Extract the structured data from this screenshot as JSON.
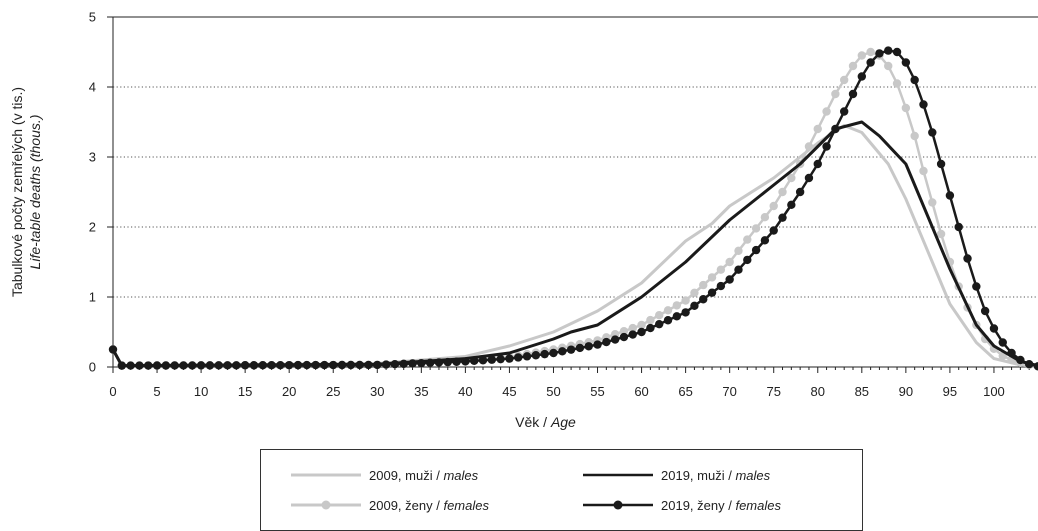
{
  "chart_data": {
    "type": "line",
    "ylabel": "Tabulkové počty zemřelých (v tis.)",
    "ylabel_en": "Life-table deaths (thous.)",
    "xlabel": "Věk",
    "xlabel_en": "Age",
    "xlim": [
      0,
      105
    ],
    "ylim": [
      0,
      5
    ],
    "x_ticks": [
      0,
      5,
      10,
      15,
      20,
      25,
      30,
      35,
      40,
      45,
      50,
      55,
      60,
      65,
      70,
      75,
      80,
      85,
      90,
      95,
      100
    ],
    "y_ticks": [
      0,
      1,
      2,
      3,
      4,
      5
    ],
    "grid": "horizontal dotted",
    "legend_position": "bottom",
    "series": [
      {
        "name": "2009, muži",
        "name_en": "males",
        "color": "#c8c8c8",
        "marker": false,
        "x": [
          0,
          1,
          30,
          40,
          45,
          50,
          55,
          60,
          65,
          68,
          70,
          75,
          80,
          83,
          85,
          88,
          90,
          93,
          95,
          98,
          100,
          103,
          105
        ],
        "y": [
          0.25,
          0.02,
          0.05,
          0.15,
          0.3,
          0.5,
          0.8,
          1.2,
          1.8,
          2.05,
          2.3,
          2.7,
          3.2,
          3.45,
          3.35,
          2.9,
          2.4,
          1.5,
          0.9,
          0.35,
          0.12,
          0.03,
          0.0
        ]
      },
      {
        "name": "2019, muži",
        "name_en": "males",
        "color": "#1a1a1a",
        "marker": false,
        "x": [
          0,
          1,
          30,
          40,
          45,
          50,
          52,
          55,
          60,
          65,
          70,
          75,
          78,
          80,
          82,
          85,
          87,
          90,
          93,
          95,
          98,
          100,
          103,
          105
        ],
        "y": [
          0.25,
          0.02,
          0.04,
          0.12,
          0.2,
          0.4,
          0.5,
          0.6,
          1.0,
          1.5,
          2.1,
          2.6,
          2.9,
          3.15,
          3.4,
          3.5,
          3.3,
          2.9,
          2.0,
          1.4,
          0.6,
          0.3,
          0.08,
          0.02
        ]
      },
      {
        "name": "2009, ženy",
        "name_en": "females",
        "color": "#c8c8c8",
        "marker": true,
        "x": [
          0,
          1,
          30,
          40,
          45,
          50,
          55,
          60,
          65,
          70,
          75,
          78,
          80,
          82,
          84,
          85,
          86,
          87,
          88,
          89,
          90,
          91,
          92,
          93,
          94,
          95,
          96,
          97,
          98,
          99,
          100,
          101,
          102,
          103,
          104,
          105
        ],
        "y": [
          0.25,
          0.02,
          0.03,
          0.08,
          0.14,
          0.25,
          0.38,
          0.6,
          0.95,
          1.5,
          2.3,
          2.9,
          3.4,
          3.9,
          4.3,
          4.45,
          4.5,
          4.45,
          4.3,
          4.05,
          3.7,
          3.3,
          2.8,
          2.35,
          1.9,
          1.5,
          1.15,
          0.85,
          0.6,
          0.4,
          0.26,
          0.16,
          0.1,
          0.06,
          0.03,
          0.01
        ]
      },
      {
        "name": "2019, ženy",
        "name_en": "females",
        "color": "#1a1a1a",
        "marker": true,
        "x": [
          0,
          1,
          30,
          40,
          45,
          50,
          55,
          60,
          65,
          70,
          75,
          78,
          80,
          82,
          84,
          85,
          86,
          87,
          88,
          89,
          90,
          91,
          92,
          93,
          94,
          95,
          96,
          97,
          98,
          99,
          100,
          101,
          102,
          103,
          104,
          105
        ],
        "y": [
          0.25,
          0.02,
          0.03,
          0.08,
          0.12,
          0.2,
          0.32,
          0.5,
          0.78,
          1.25,
          1.95,
          2.5,
          2.9,
          3.4,
          3.9,
          4.15,
          4.35,
          4.48,
          4.52,
          4.5,
          4.35,
          4.1,
          3.75,
          3.35,
          2.9,
          2.45,
          2.0,
          1.55,
          1.15,
          0.8,
          0.55,
          0.35,
          0.2,
          0.1,
          0.04,
          0.01
        ]
      }
    ]
  },
  "legend": [
    {
      "label": "2009, muži",
      "label_en": "males"
    },
    {
      "label": "2019, muži",
      "label_en": "males"
    },
    {
      "label": "2009, ženy",
      "label_en": "females"
    },
    {
      "label": "2019, ženy",
      "label_en": "females"
    }
  ]
}
